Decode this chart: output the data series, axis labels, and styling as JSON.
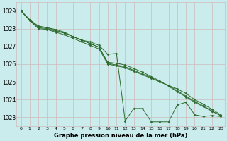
{
  "title": "Graphe pression niveau de la mer (hPa)",
  "bg_color": "#cbecec",
  "grid_color": "#ccbbbb",
  "line_color": "#2d6a2d",
  "marker_color": "#2d6a2d",
  "xlim": [
    -0.5,
    23.5
  ],
  "ylim": [
    1022.5,
    1029.5
  ],
  "yticks": [
    1023,
    1024,
    1025,
    1026,
    1027,
    1028,
    1029
  ],
  "xticks": [
    0,
    1,
    2,
    3,
    4,
    5,
    6,
    7,
    8,
    9,
    10,
    11,
    12,
    13,
    14,
    15,
    16,
    17,
    18,
    19,
    20,
    21,
    22,
    23
  ],
  "series": [
    [
      1029.0,
      1028.5,
      1028.05,
      1028.0,
      1027.85,
      1027.75,
      1027.55,
      1027.35,
      1027.25,
      1027.05,
      1026.55,
      1026.6,
      1022.8,
      1023.5,
      1023.5,
      1022.75,
      1022.75,
      1022.75,
      1023.7,
      1023.85,
      1023.15,
      1023.05,
      1023.1,
      1023.05
    ],
    [
      1029.0,
      1028.45,
      1028.0,
      1027.95,
      1027.8,
      1027.65,
      1027.45,
      1027.25,
      1027.05,
      1026.85,
      1026.0,
      1025.9,
      1025.8,
      1025.6,
      1025.4,
      1025.2,
      1025.0,
      1024.8,
      1024.6,
      1024.35,
      1024.0,
      1023.75,
      1023.45,
      1023.15
    ],
    [
      1029.0,
      1028.5,
      1028.1,
      1028.05,
      1027.9,
      1027.75,
      1027.55,
      1027.35,
      1027.15,
      1026.95,
      1026.05,
      1025.95,
      1025.85,
      1025.65,
      1025.45,
      1025.25,
      1025.0,
      1024.8,
      1024.5,
      1024.2,
      1023.9,
      1023.65,
      1023.35,
      1023.1
    ],
    [
      1029.0,
      1028.5,
      1028.15,
      1028.05,
      1027.95,
      1027.8,
      1027.55,
      1027.35,
      1027.15,
      1026.95,
      1026.1,
      1026.05,
      1025.95,
      1025.75,
      1025.55,
      1025.3,
      1025.05,
      1024.75,
      1024.45,
      1024.15,
      1023.85,
      1023.6,
      1023.35,
      1023.1
    ]
  ]
}
